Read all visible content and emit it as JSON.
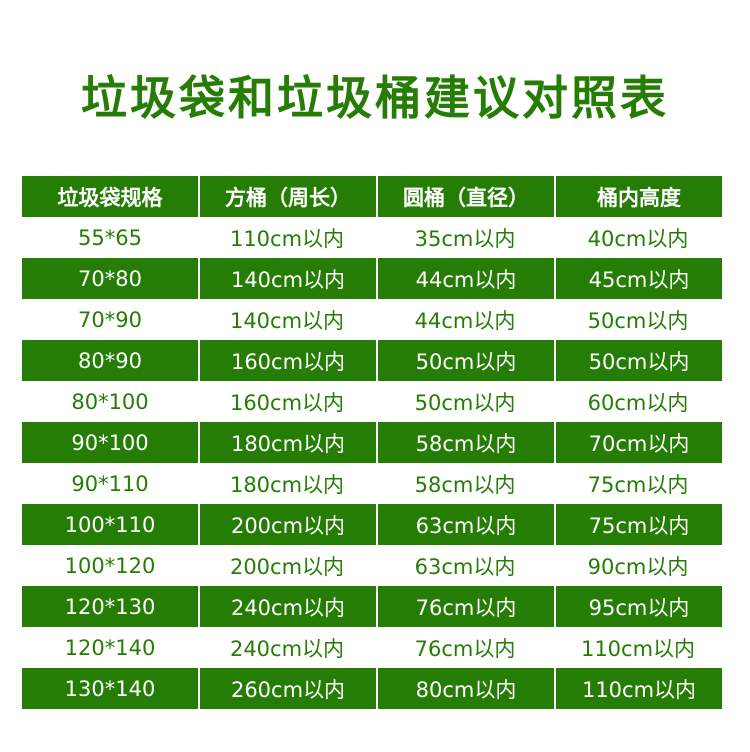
{
  "title": "垃圾袋和垃圾桶建议对照表",
  "colors": {
    "green": "#267d06",
    "white": "#ffffff"
  },
  "headers": [
    "垃圾袋规格",
    "方桶（周长）",
    "圆桶（直径）",
    "桶内高度"
  ],
  "rows": [
    [
      "55*65",
      "110cm以内",
      "35cm以内",
      "40cm以内"
    ],
    [
      "70*80",
      "140cm以内",
      "44cm以内",
      "45cm以内"
    ],
    [
      "70*90",
      "140cm以内",
      "44cm以内",
      "50cm以内"
    ],
    [
      "80*90",
      "160cm以内",
      "50cm以内",
      "50cm以内"
    ],
    [
      "80*100",
      "160cm以内",
      "50cm以内",
      "60cm以内"
    ],
    [
      "90*100",
      "180cm以内",
      "58cm以内",
      "70cm以内"
    ],
    [
      "90*110",
      "180cm以内",
      "58cm以内",
      "75cm以内"
    ],
    [
      "100*110",
      "200cm以内",
      "63cm以内",
      "75cm以内"
    ],
    [
      "100*120",
      "200cm以内",
      "63cm以内",
      "90cm以内"
    ],
    [
      "120*130",
      "240cm以内",
      "76cm以内",
      "95cm以内"
    ],
    [
      "120*140",
      "240cm以内",
      "76cm以内",
      "110cm以内"
    ],
    [
      "130*140",
      "260cm以内",
      "80cm以内",
      "110cm以内"
    ]
  ]
}
